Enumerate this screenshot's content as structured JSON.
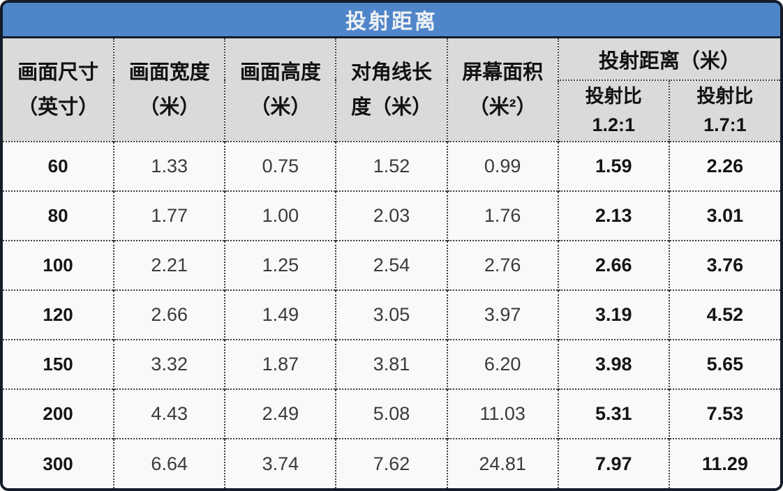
{
  "header": {
    "title": "投射距离"
  },
  "table": {
    "headers": [
      {
        "line1": "画面尺寸",
        "line2": "（英寸）"
      },
      {
        "line1": "画面宽度",
        "line2": "（米）"
      },
      {
        "line1": "画面高度",
        "line2": "（米）"
      },
      {
        "line1": "对角线长",
        "line2": "度（米）"
      },
      {
        "line1": "屏幕面积",
        "line2": "（米²）"
      }
    ],
    "group_header": "投射距离（米）",
    "sub_headers": [
      {
        "line1": "投射比",
        "line2": "1.2:1"
      },
      {
        "line1": "投射比",
        "line2": "1.7:1"
      }
    ],
    "rows": [
      [
        "60",
        "1.33",
        "0.75",
        "1.52",
        "0.99",
        "1.59",
        "2.26"
      ],
      [
        "80",
        "1.77",
        "1.00",
        "2.03",
        "1.76",
        "2.13",
        "3.01"
      ],
      [
        "100",
        "2.21",
        "1.25",
        "2.54",
        "2.76",
        "2.66",
        "3.76"
      ],
      [
        "120",
        "2.66",
        "1.49",
        "3.05",
        "3.97",
        "3.19",
        "4.52"
      ],
      [
        "150",
        "3.32",
        "1.87",
        "3.81",
        "6.20",
        "3.98",
        "5.65"
      ],
      [
        "200",
        "4.43",
        "2.49",
        "5.08",
        "11.03",
        "5.31",
        "7.53"
      ],
      [
        "300",
        "6.64",
        "3.74",
        "7.62",
        "24.81",
        "7.97",
        "11.29"
      ]
    ]
  },
  "colors": {
    "title_bar": "#4f85c9",
    "title_text": "#eef1f4",
    "frame_border": "#141b29",
    "header_bg": "#d9dad9",
    "row_bg": "#f9f9fb",
    "dotted_rule": "#3d3d3d"
  },
  "chart_data": {
    "type": "table",
    "title": "投射距离",
    "columns": [
      "画面尺寸（英寸）",
      "画面宽度（米）",
      "画面高度（米）",
      "对角线长度（米）",
      "屏幕面积（米²）",
      "投射距离（米）投射比1.2:1",
      "投射距离（米）投射比1.7:1"
    ],
    "rows": [
      [
        60,
        1.33,
        0.75,
        1.52,
        0.99,
        1.59,
        2.26
      ],
      [
        80,
        1.77,
        1.0,
        2.03,
        1.76,
        2.13,
        3.01
      ],
      [
        100,
        2.21,
        1.25,
        2.54,
        2.76,
        2.66,
        3.76
      ],
      [
        120,
        2.66,
        1.49,
        3.05,
        3.97,
        3.19,
        4.52
      ],
      [
        150,
        3.32,
        1.87,
        3.81,
        6.2,
        3.98,
        5.65
      ],
      [
        200,
        4.43,
        2.49,
        5.08,
        11.03,
        5.31,
        7.53
      ],
      [
        300,
        6.64,
        3.74,
        7.62,
        24.81,
        7.97,
        11.29
      ]
    ]
  }
}
